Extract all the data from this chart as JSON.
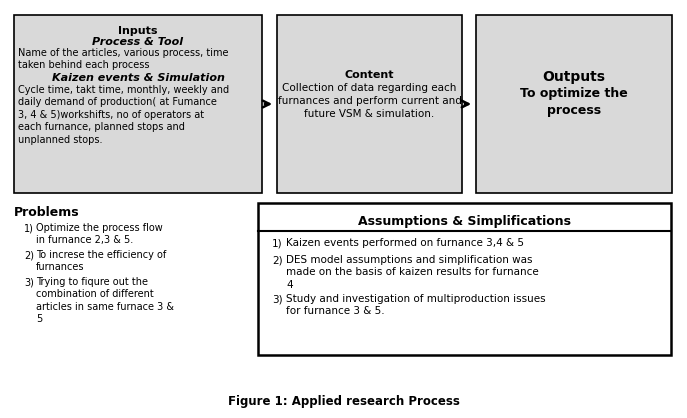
{
  "bg_color": "#ffffff",
  "box_bg": "#d9d9d9",
  "box_border": "#000000",
  "fig_caption": "Figure 1: Applied research Process",
  "inputs_title": "Inputs",
  "inputs_subtitle": "Process & Tool",
  "inputs_text1": "Name of the articles, various process, time\ntaken behind each process",
  "inputs_subtitle2": "Kaizen events & Simulation",
  "inputs_text2": "Cycle time, takt time, monthly, weekly and\ndaily demand of production( at Fumance\n3, 4 & 5)workshifts, no of operators at\neach furnance, planned stops and\nunplanned stops.",
  "content_title": "Content",
  "content_text": "Collection of data regarding each\nfurnances and perform current and\nfuture VSM & simulation.",
  "outputs_title": "Outputs",
  "outputs_text": "To optimize the\nprocess",
  "problems_title": "Problems",
  "problems_items": [
    "Optimize the process flow\nin furnance 2,3 & 5.",
    "To increse the efficiency of\nfurnances",
    "Trying to fiqure out the\ncombination of different\narticles in same furnace 3 &\n5"
  ],
  "assumptions_title": "Assumptions & Simplifications",
  "assumptions_items": [
    "Kaizen events performed on furnance 3,4 & 5",
    "DES model assumptions and simplification was\nmade on the basis of kaizen results for furnance\n4",
    "Study and investigation of multiproduction issues\nfor furnance 3 & 5."
  ]
}
